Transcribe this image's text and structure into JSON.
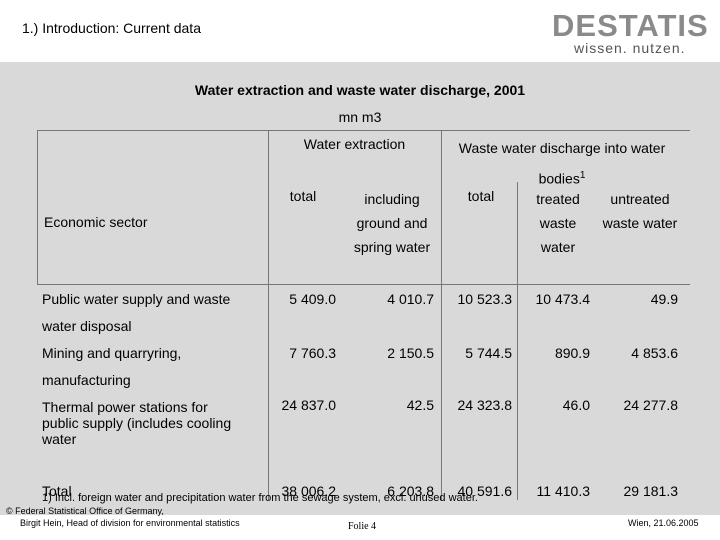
{
  "header": {
    "title": "1.) Introduction: Current data",
    "logo": "DESTATIS",
    "logo_tagline": "wissen. nutzen."
  },
  "table": {
    "title": "Water extraction and waste water discharge, 2001",
    "unit": "mn m3",
    "row_header": "Economic sector",
    "group_headers": [
      "Water extraction",
      "Waste water discharge into water bodies"
    ],
    "group_footnote_mark": "1",
    "columns": [
      "total",
      "including ground and spring water",
      "total",
      "treated waste water",
      "untreated waste water"
    ],
    "rows": [
      [
        "Public water supply and waste water disposal",
        "5 409.0",
        "4 010.7",
        "10 523.3",
        "10 473.4",
        "49.9"
      ],
      [
        "Mining and quarryring, manufacturing",
        "7 760.3",
        "2 150.5",
        "5 744.5",
        "890.9",
        "4 853.6"
      ],
      [
        "Thermal power stations for public supply (includes cooling water",
        "24 837.0",
        "42.5",
        "24 323.8",
        "46.0",
        "24 277.8"
      ],
      [
        "Total",
        "38 006.2",
        "6 203.8",
        "40 591.6",
        "11 410.3",
        "29 181.3"
      ]
    ],
    "footnote": "1) Incl. foreign water and precipitation water from the sewage system, excl. unused water."
  },
  "footer": {
    "copyright": "© Federal Statistical Office of Germany,",
    "author": "Birgit Hein, Head of division for environmental statistics",
    "slide": "Folie 4",
    "place_date": "Wien, 21.06.2005"
  }
}
